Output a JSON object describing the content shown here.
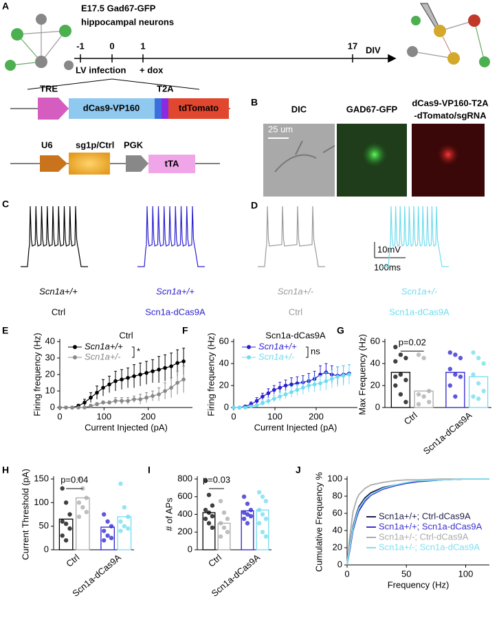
{
  "panel_labels": [
    "A",
    "B",
    "C",
    "D",
    "E",
    "F",
    "G",
    "H",
    "I",
    "J"
  ],
  "panel_a": {
    "title": [
      "E17.5 Gad67-GFP",
      "hippocampal neurons"
    ],
    "timeline_ticks": [
      "-1",
      "0",
      "1",
      "17"
    ],
    "timeline_unit": "DIV",
    "events": [
      "LV infection",
      "+ dox"
    ],
    "construct_1": [
      "TRE",
      "dCas9-VP160",
      "T2A",
      "tdTomato"
    ],
    "construct_2": [
      "U6",
      "sg1p/Ctrl",
      "PGK",
      "tTA"
    ]
  },
  "panel_b": {
    "images": [
      "DIC",
      "GAD67-GFP"
    ],
    "image_3": [
      "dCas9-VP160-T2A",
      "-dTomato/sgRNA"
    ],
    "scale_bar": "25 um"
  },
  "traces": [
    {
      "genotype": "Scn1a+/+",
      "condition": "Ctrl",
      "color": "#000000",
      "spikes": 9
    },
    {
      "genotype": "Scn1a+/+",
      "condition": "Scn1a-dCas9A",
      "color": "#2a1fd0",
      "spikes": 9
    },
    {
      "genotype": "Scn1a+/-",
      "condition": "Ctrl",
      "color": "#999999",
      "spikes": 4
    },
    {
      "genotype": "Scn1a+/-",
      "condition": "Scn1a-dCas9A",
      "color": "#6fdcef",
      "spikes": 11
    }
  ],
  "scale_bar": [
    "10mV",
    "100ms"
  ],
  "chart_data": [
    {
      "type": "line",
      "title": "Ctrl",
      "xlabel": "Current Injected (pA)",
      "ylabel": "Firing frequency (Hz)",
      "markers": true,
      "significance": "*",
      "x": [
        0,
        14,
        28,
        42,
        56,
        70,
        84,
        98,
        112,
        126,
        140,
        154,
        168,
        182,
        196,
        210,
        224,
        238,
        252,
        266,
        280
      ],
      "xlim": [
        0,
        300
      ],
      "xticks": [
        0,
        100,
        200
      ],
      "ylim": [
        0,
        40
      ],
      "yticks": [
        0,
        10,
        20,
        30,
        40
      ],
      "series": [
        {
          "name": "Scn1a+/+",
          "color": "#000000",
          "values": [
            0,
            0,
            0,
            1,
            3,
            6,
            9,
            12,
            14,
            16,
            17,
            18,
            19,
            20,
            21,
            22,
            23,
            24,
            25,
            27,
            28
          ],
          "errors": [
            0,
            0,
            0,
            1,
            2,
            3,
            4,
            5,
            5,
            6,
            6,
            6,
            7,
            7,
            7,
            7,
            8,
            8,
            8,
            8,
            8
          ]
        },
        {
          "name": "Scn1a+/-",
          "color": "#888888",
          "values": [
            0,
            0,
            0,
            0,
            0,
            1,
            2,
            3,
            3,
            4,
            4,
            4,
            5,
            5,
            6,
            7,
            8,
            10,
            12,
            15,
            17
          ],
          "errors": [
            0,
            0,
            0,
            0,
            0,
            1,
            1,
            1,
            1,
            2,
            2,
            2,
            2,
            3,
            3,
            3,
            4,
            5,
            6,
            7,
            8
          ]
        }
      ]
    },
    {
      "type": "line",
      "title": "Scn1a-dCas9A",
      "xlabel": "Current Injected (pA)",
      "ylabel": "Firing frequency (Hz)",
      "markers": true,
      "significance": "ns",
      "x": [
        0,
        14,
        28,
        42,
        56,
        70,
        84,
        98,
        112,
        126,
        140,
        154,
        168,
        182,
        196,
        210,
        224,
        238,
        252,
        266,
        280
      ],
      "xlim": [
        0,
        300
      ],
      "xticks": [
        0,
        100,
        200
      ],
      "ylim": [
        0,
        60
      ],
      "yticks": [
        0,
        20,
        40,
        60
      ],
      "series": [
        {
          "name": "Scn1a+/+",
          "color": "#2a1fd0",
          "values": [
            0,
            0,
            1,
            3,
            6,
            10,
            13,
            16,
            18,
            20,
            21,
            22,
            23,
            24,
            26,
            30,
            32,
            30,
            29,
            30,
            31
          ],
          "errors": [
            0,
            0,
            1,
            2,
            3,
            3,
            4,
            4,
            5,
            5,
            6,
            6,
            6,
            7,
            7,
            8,
            8,
            8,
            8,
            8,
            8
          ]
        },
        {
          "name": "Scn1a+/-",
          "color": "#6fdcef",
          "values": [
            0,
            0,
            0,
            1,
            2,
            4,
            6,
            8,
            10,
            12,
            14,
            16,
            18,
            20,
            21,
            22,
            24,
            26,
            28,
            29,
            30
          ],
          "errors": [
            0,
            0,
            0,
            1,
            1,
            2,
            3,
            3,
            4,
            4,
            5,
            5,
            6,
            6,
            7,
            7,
            8,
            8,
            9,
            9,
            9
          ]
        }
      ]
    },
    {
      "type": "bar",
      "ylabel": "Max Frequency (Hz)",
      "annotation": "p=0.02",
      "groups": [
        "Ctrl",
        "Scn1a-dCas9A"
      ],
      "ylim": [
        0,
        60
      ],
      "yticks": [
        0,
        20,
        40,
        60
      ],
      "values": [
        32,
        15,
        32,
        28
      ],
      "colors": [
        "#000000",
        "#aaaaaa",
        "#2a1fd0",
        "#6fdcef"
      ],
      "points": [
        [
          55,
          48,
          45,
          42,
          30,
          25,
          20,
          12,
          5,
          28
        ],
        [
          48,
          45,
          15,
          12,
          10,
          5,
          3
        ],
        [
          50,
          48,
          45,
          35,
          30,
          28,
          20,
          10
        ],
        [
          50,
          45,
          40,
          30,
          22,
          15,
          10,
          8
        ]
      ]
    },
    {
      "type": "bar",
      "ylabel": "Current Threshold (pA)",
      "annotation": "p=0.04",
      "groups": [
        "Ctrl",
        "Scn1a-dCas9A"
      ],
      "ylim": [
        0,
        150
      ],
      "yticks": [
        0,
        50,
        100,
        150
      ],
      "values": [
        65,
        110,
        48,
        70
      ],
      "colors": [
        "#000000",
        "#aaaaaa",
        "#2a1fd0",
        "#6fdcef"
      ],
      "points": [
        [
          130,
          100,
          75,
          60,
          55,
          45,
          30,
          20
        ],
        [
          150,
          130,
          110,
          100,
          90,
          80,
          70
        ],
        [
          75,
          60,
          50,
          40,
          30,
          25,
          20
        ],
        [
          140,
          90,
          70,
          60,
          50,
          45,
          40
        ]
      ]
    },
    {
      "type": "bar",
      "ylabel": "# of APs",
      "annotation": "p=0.03",
      "groups": [
        "Ctrl",
        "Scn1a-dCas9A"
      ],
      "ylim": [
        0,
        800
      ],
      "yticks": [
        0,
        200,
        400,
        600,
        800
      ],
      "values": [
        420,
        300,
        440,
        450
      ],
      "colors": [
        "#000000",
        "#aaaaaa",
        "#2a1fd0",
        "#6fdcef"
      ],
      "points": [
        [
          780,
          620,
          500,
          450,
          420,
          380,
          350,
          300,
          250
        ],
        [
          550,
          420,
          350,
          300,
          250,
          200,
          150
        ],
        [
          600,
          520,
          450,
          420,
          400,
          380,
          350,
          300
        ],
        [
          650,
          600,
          550,
          450,
          400,
          350,
          300,
          200,
          150
        ]
      ]
    },
    {
      "type": "line",
      "xlabel": "Frequency (Hz)",
      "ylabel": "Cumulative Frequency %",
      "legend": "lower right",
      "x": [
        0,
        2,
        5,
        8,
        10,
        15,
        20,
        30,
        40,
        50,
        60,
        80,
        100,
        120
      ],
      "xlim": [
        0,
        120
      ],
      "xticks": [
        0,
        50,
        100
      ],
      "ylim": [
        0,
        100
      ],
      "yticks": [
        0,
        20,
        40,
        60,
        80,
        100
      ],
      "series": [
        {
          "name": "Scn1a+/+; Ctrl-dCas9A",
          "color": "#1c1c4a",
          "values": [
            0,
            20,
            45,
            60,
            68,
            78,
            84,
            90,
            93,
            95,
            97,
            99,
            100,
            100
          ]
        },
        {
          "name": "Scn1a+/+; Scn1a-dCas9A",
          "color": "#3a2fd0",
          "values": [
            0,
            15,
            40,
            55,
            63,
            74,
            81,
            88,
            92,
            95,
            97,
            99,
            100,
            100
          ]
        },
        {
          "name": "Scn1a+/-; Ctrl-dCas9A",
          "color": "#aaaaaa",
          "values": [
            0,
            30,
            62,
            76,
            82,
            89,
            93,
            96,
            98,
            99,
            99,
            100,
            100,
            100
          ]
        },
        {
          "name": "Scn1a+/-; Scn1a-dCas9A",
          "color": "#7fe0f0",
          "values": [
            0,
            18,
            43,
            58,
            66,
            76,
            82,
            89,
            93,
            96,
            98,
            99,
            100,
            100
          ]
        }
      ]
    }
  ]
}
